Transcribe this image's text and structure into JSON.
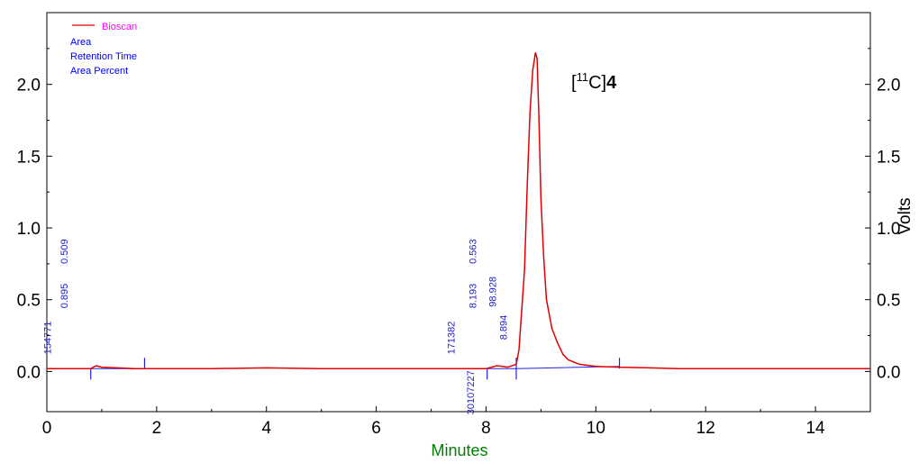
{
  "chart_data": {
    "type": "line",
    "title": "",
    "xlabel": "Minutes",
    "ylabel": "Volts",
    "xlim": [
      0,
      15
    ],
    "ylim": [
      -0.28,
      2.5
    ],
    "x_ticks": [
      "0",
      "2",
      "4",
      "6",
      "8",
      "10",
      "12",
      "14"
    ],
    "y_ticks": [
      "0.0",
      "0.5",
      "1.0",
      "1.5",
      "2.0"
    ],
    "grid": false,
    "legend_position": "top-left",
    "legend": [
      {
        "label": "Bioscan",
        "color": "#ff00ff",
        "line_color": "#e00000"
      },
      {
        "label": "Area",
        "color": "#0000ff"
      },
      {
        "label": "Retention Time",
        "color": "#0000ff"
      },
      {
        "label": "Area Percent",
        "color": "#0000ff"
      }
    ],
    "peak_label": {
      "prefix": "[",
      "superscript": "11",
      "element": "C]",
      "compound": "4"
    },
    "series": [
      {
        "name": "Bioscan",
        "color": "#e00000",
        "x": [
          0,
          0.8,
          0.85,
          0.9,
          1.0,
          1.3,
          1.6,
          3.0,
          4.0,
          5.0,
          6.0,
          7.0,
          7.8,
          8.0,
          8.1,
          8.2,
          8.4,
          8.55,
          8.6,
          8.7,
          8.75,
          8.8,
          8.85,
          8.9,
          8.93,
          8.96,
          9.0,
          9.05,
          9.1,
          9.2,
          9.3,
          9.4,
          9.5,
          9.7,
          10.0,
          10.4,
          11.0,
          11.5,
          15
        ],
        "y": [
          0.02,
          0.02,
          0.03,
          0.04,
          0.03,
          0.025,
          0.02,
          0.02,
          0.025,
          0.02,
          0.02,
          0.02,
          0.02,
          0.02,
          0.03,
          0.04,
          0.03,
          0.05,
          0.15,
          0.7,
          1.3,
          1.8,
          2.1,
          2.22,
          2.18,
          1.8,
          1.2,
          0.8,
          0.5,
          0.3,
          0.2,
          0.12,
          0.08,
          0.05,
          0.035,
          0.03,
          0.025,
          0.02,
          0.02
        ]
      }
    ],
    "baselines": [
      {
        "x": [
          0.8,
          1.78
        ],
        "y": [
          0.02,
          0.02
        ]
      },
      {
        "x": [
          8.02,
          8.55
        ],
        "y": [
          0.02,
          0.02
        ]
      },
      {
        "x": [
          8.55,
          10.43
        ],
        "y": [
          0.02,
          0.035
        ]
      }
    ],
    "markers": [
      {
        "x": 0.8,
        "dir": "down"
      },
      {
        "x": 1.78,
        "dir": "up"
      },
      {
        "x": 8.02,
        "dir": "down"
      },
      {
        "x": 8.55,
        "dir": "both"
      },
      {
        "x": 10.43,
        "dir": "up"
      }
    ],
    "annotations": [
      {
        "text": "154771",
        "x": 0.07,
        "y": 0.12
      },
      {
        "text": "0.895",
        "x": 0.38,
        "y": 0.44
      },
      {
        "text": "0.509",
        "x": 0.38,
        "y": 0.75
      },
      {
        "text": "171382",
        "x": 7.43,
        "y": 0.12
      },
      {
        "text": "30107227",
        "x": 7.78,
        "y": -0.3
      },
      {
        "text": "8.193",
        "x": 7.82,
        "y": 0.44
      },
      {
        "text": "0.563",
        "x": 7.82,
        "y": 0.75
      },
      {
        "text": "98.928",
        "x": 8.18,
        "y": 0.45
      },
      {
        "text": "8.894",
        "x": 8.38,
        "y": 0.22
      }
    ]
  }
}
